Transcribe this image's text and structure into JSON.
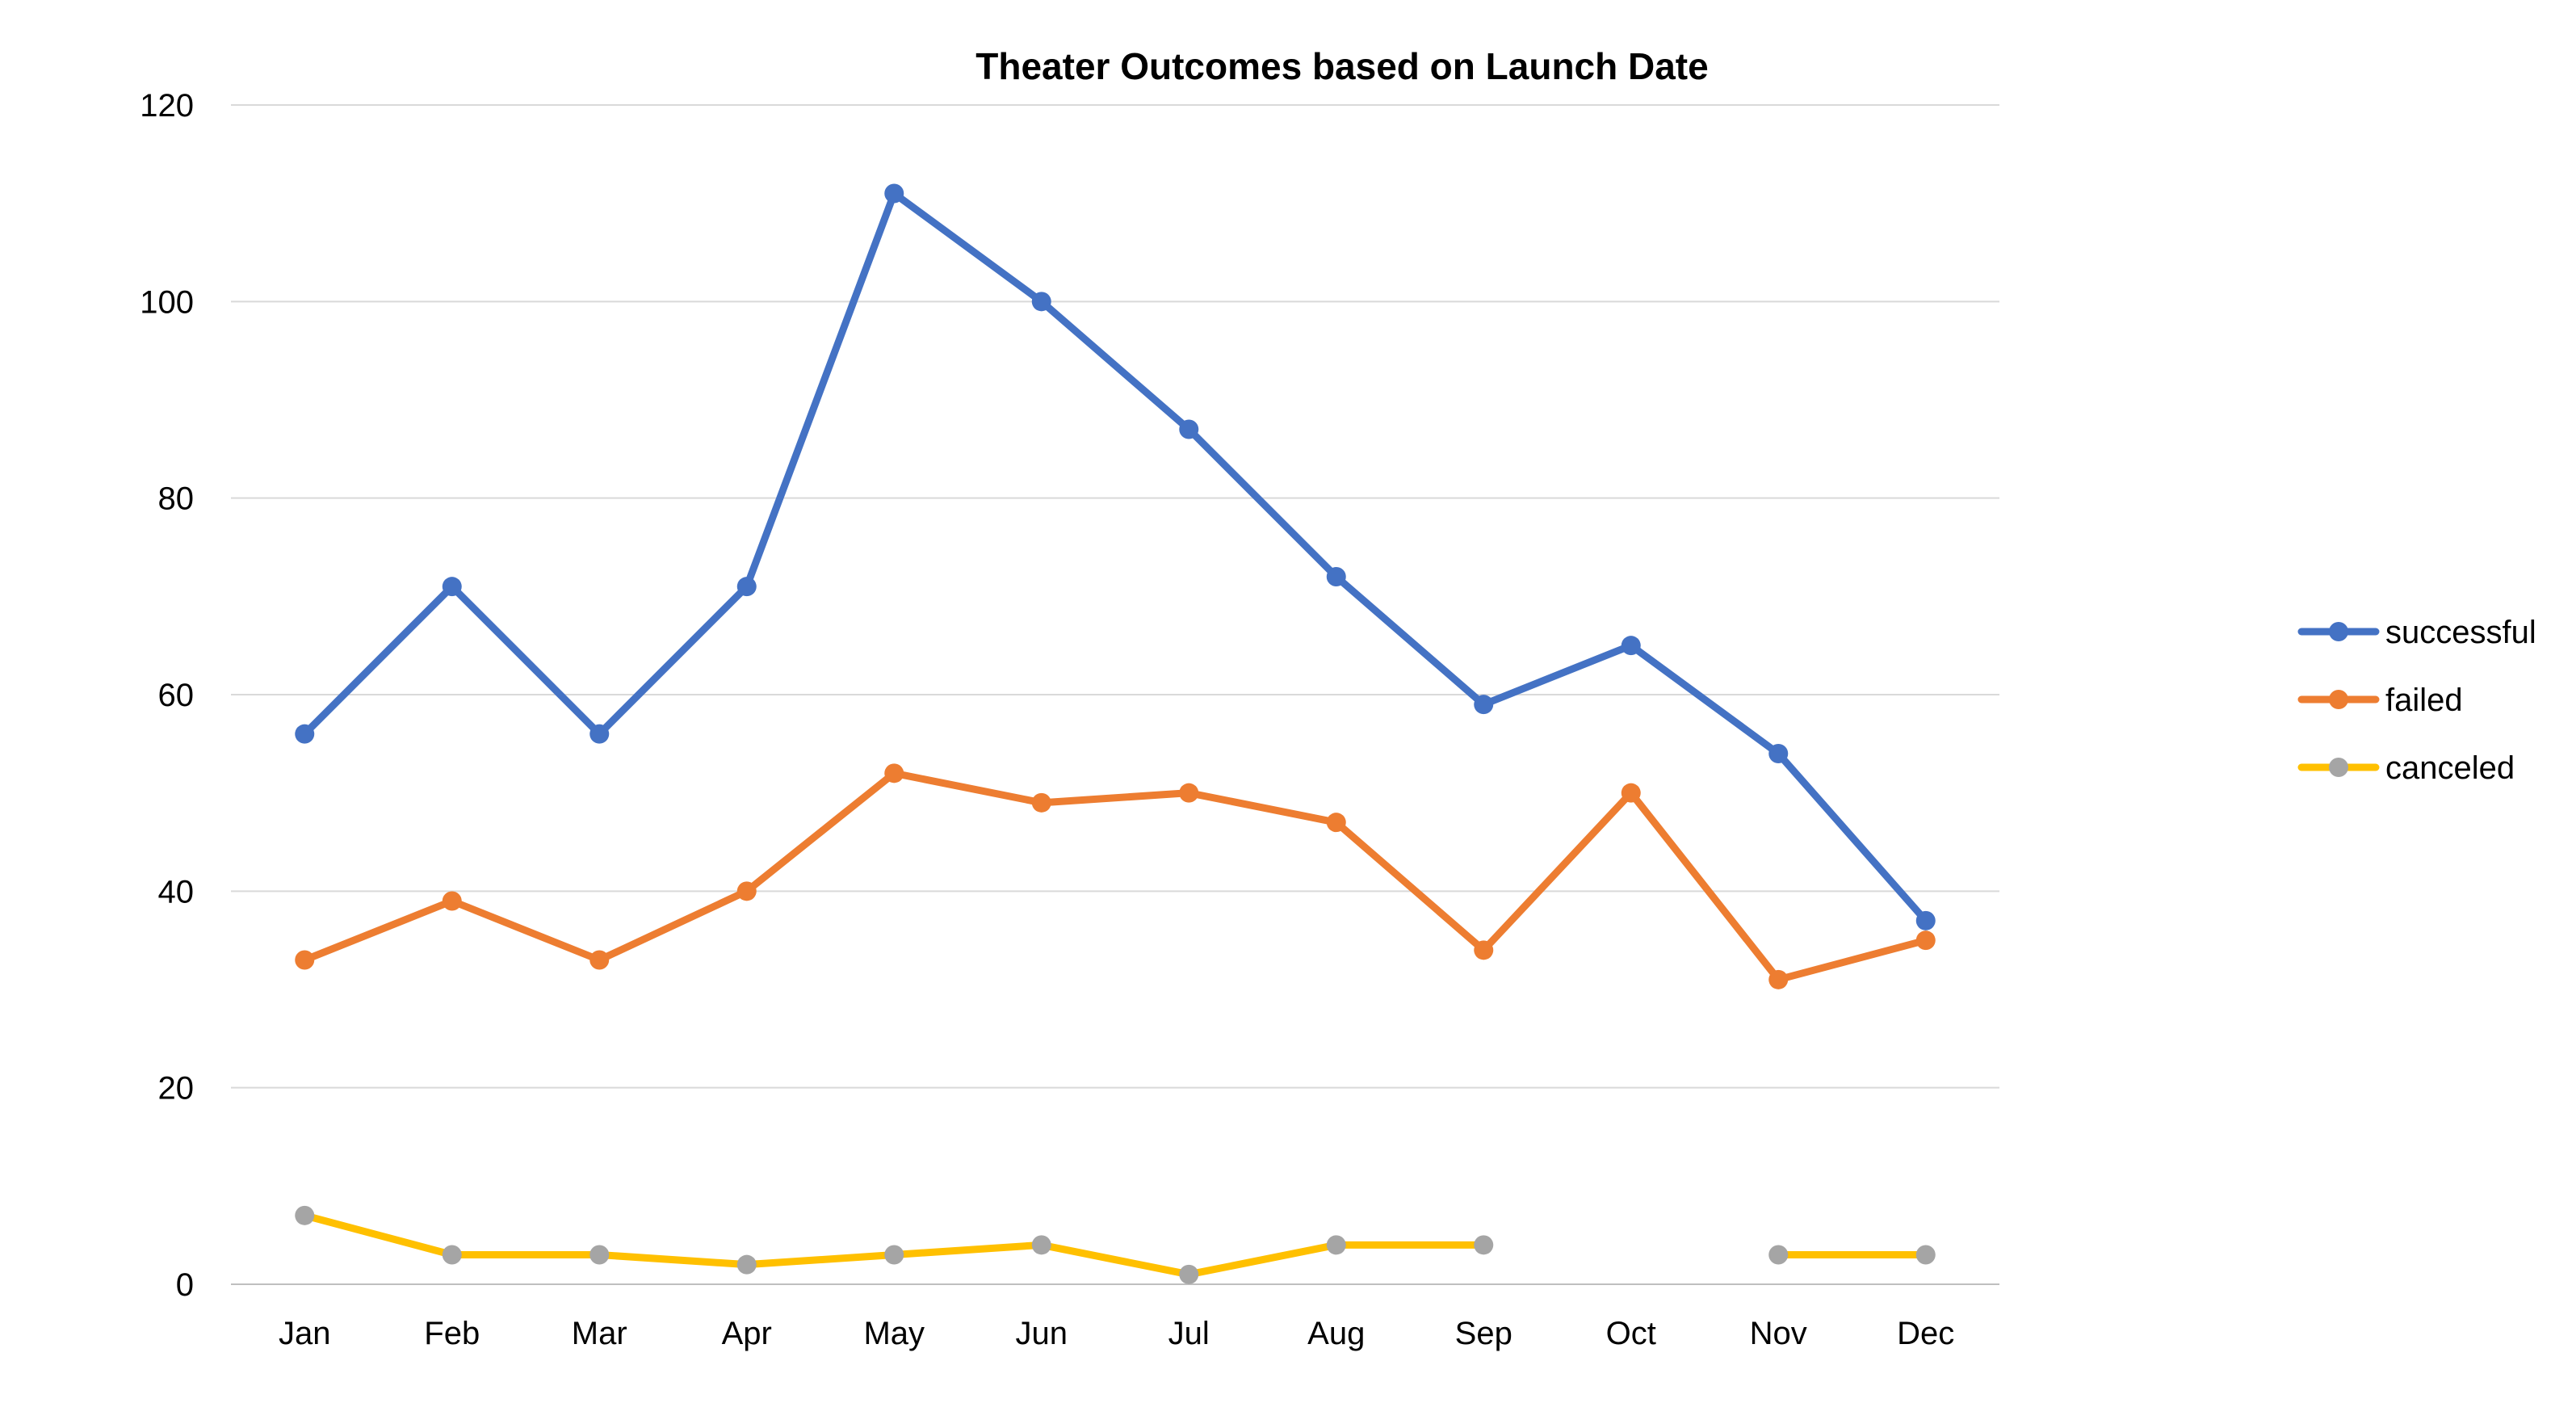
{
  "chart_data": {
    "type": "line",
    "title": "Theater Outcomes based on Launch Date",
    "xlabel": "",
    "ylabel": "",
    "categories": [
      "Jan",
      "Feb",
      "Mar",
      "Apr",
      "May",
      "Jun",
      "Jul",
      "Aug",
      "Sep",
      "Oct",
      "Nov",
      "Dec"
    ],
    "ylim": [
      0,
      120
    ],
    "yticks": [
      0,
      20,
      40,
      60,
      80,
      100,
      120
    ],
    "grid": true,
    "legend_position": "right",
    "series": [
      {
        "name": "successful",
        "color": "#4472C4",
        "values": [
          56,
          71,
          56,
          71,
          111,
          100,
          87,
          72,
          59,
          65,
          54,
          37
        ]
      },
      {
        "name": "failed",
        "color": "#ED7D31",
        "values": [
          33,
          39,
          33,
          40,
          52,
          49,
          50,
          47,
          34,
          50,
          31,
          35
        ]
      },
      {
        "name": "canceled",
        "color": "#FFC000",
        "marker_color": "#A5A5A5",
        "values": [
          7,
          3,
          3,
          2,
          3,
          4,
          1,
          4,
          4,
          null,
          3,
          3
        ]
      }
    ]
  }
}
